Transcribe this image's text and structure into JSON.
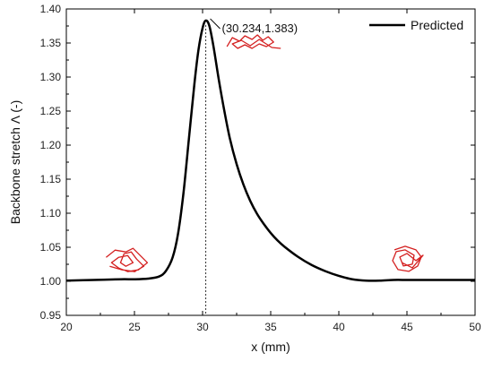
{
  "chart_data": {
    "type": "line",
    "title": "",
    "xlabel": "x (mm)",
    "ylabel": "Backbone stretch Λ (-)",
    "xlim": [
      20,
      50
    ],
    "ylim": [
      0.95,
      1.4
    ],
    "xticks": [
      20,
      25,
      30,
      35,
      40,
      45,
      50
    ],
    "yticks": [
      0.95,
      1.0,
      1.05,
      1.1,
      1.15,
      1.2,
      1.25,
      1.3,
      1.35,
      1.4
    ],
    "xtick_labels": [
      "20",
      "25",
      "30",
      "35",
      "40",
      "45",
      "50"
    ],
    "ytick_labels": [
      "0.95",
      "1.00",
      "1.05",
      "1.10",
      "1.15",
      "1.20",
      "1.25",
      "1.30",
      "1.35",
      "1.40"
    ],
    "grid": false,
    "legend_position": "top-right",
    "series": [
      {
        "name": "Predicted",
        "color": "#000000",
        "x": [
          20,
          22,
          24,
          25,
          26,
          26.8,
          27.3,
          27.8,
          28.2,
          28.6,
          29.0,
          29.4,
          29.7,
          30.0,
          30.234,
          30.5,
          30.8,
          31.2,
          31.6,
          32.0,
          32.5,
          33.0,
          33.5,
          34.0,
          34.5,
          35.0,
          35.5,
          36.0,
          37.0,
          38.0,
          39.0,
          40.0,
          41.0,
          42.0,
          43.0,
          44.0,
          45.0,
          46.0,
          47.0,
          48.0,
          50.0
        ],
        "y": [
          1.001,
          1.002,
          1.003,
          1.003,
          1.004,
          1.007,
          1.015,
          1.035,
          1.07,
          1.13,
          1.21,
          1.29,
          1.34,
          1.372,
          1.383,
          1.375,
          1.345,
          1.295,
          1.25,
          1.21,
          1.172,
          1.142,
          1.118,
          1.099,
          1.084,
          1.071,
          1.06,
          1.051,
          1.036,
          1.024,
          1.015,
          1.008,
          1.003,
          1.001,
          1.001,
          1.002,
          1.002,
          1.002,
          1.002,
          1.002,
          1.002
        ]
      }
    ],
    "annotations": [
      {
        "text": "(30.234,1.383)",
        "x": 30.234,
        "y": 1.383
      }
    ],
    "reference_lines": [
      {
        "orientation": "vertical",
        "x": 30.234,
        "style": "dotted"
      }
    ],
    "marker_color": "#d42020"
  }
}
